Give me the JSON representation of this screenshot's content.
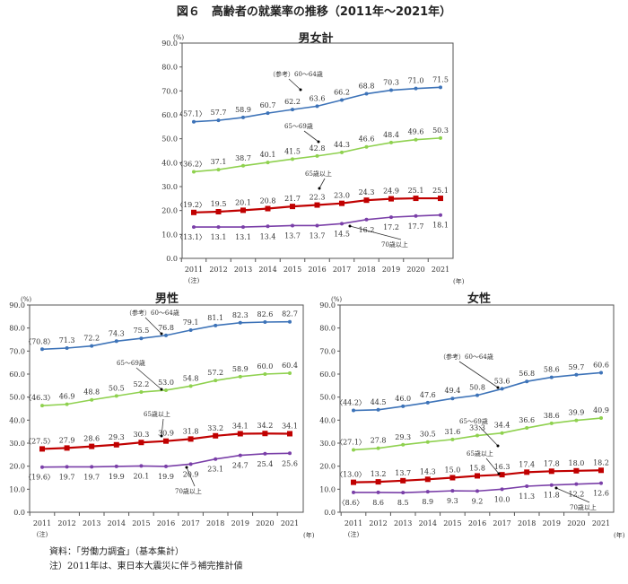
{
  "title": "図６　高齢者の就業率の推移（2011年～2021年）",
  "notes": [
    "資料：「労働力調査」（基本集計）",
    "注）2011年は、東日本大震災に伴う補完推計値"
  ],
  "colors": {
    "s6064": "#3d73b8",
    "s6569": "#8fd14f",
    "s65p": "#c00000",
    "s70p": "#7a3fa8"
  },
  "chart_data": [
    {
      "type": "line",
      "title": "男女計",
      "categories": [
        "2011",
        "2012",
        "2013",
        "2014",
        "2015",
        "2016",
        "2017",
        "2018",
        "2019",
        "2020",
        "2021"
      ],
      "x_note": "(注)",
      "x_unit": "(年)",
      "y_unit": "(%)",
      "ylim": [
        0,
        90
      ],
      "yticks": [
        "0.0",
        "10.0",
        "20.0",
        "30.0",
        "40.0",
        "50.0",
        "60.0",
        "70.0",
        "80.0",
        "90.0"
      ],
      "series": [
        {
          "name": "（参考）60～64歳",
          "values": [
            57.1,
            57.7,
            58.9,
            60.7,
            62.2,
            63.6,
            66.2,
            68.8,
            70.3,
            71.0,
            71.5
          ]
        },
        {
          "name": "65～69歳",
          "values": [
            36.2,
            37.1,
            38.7,
            40.1,
            41.5,
            42.8,
            44.3,
            46.6,
            48.4,
            49.6,
            50.3
          ]
        },
        {
          "name": "65歳以上",
          "values": [
            19.2,
            19.5,
            20.1,
            20.8,
            21.7,
            22.3,
            23.0,
            24.3,
            24.9,
            25.1,
            25.1
          ]
        },
        {
          "name": "70歳以上",
          "values": [
            13.1,
            13.1,
            13.1,
            13.4,
            13.7,
            13.7,
            14.5,
            16.2,
            17.2,
            17.7,
            18.1
          ]
        }
      ]
    },
    {
      "type": "line",
      "title": "男性",
      "categories": [
        "2011",
        "2012",
        "2013",
        "2014",
        "2015",
        "2016",
        "2017",
        "2018",
        "2019",
        "2020",
        "2021"
      ],
      "x_note": "(注)",
      "x_unit": "(年)",
      "y_unit": "(%)",
      "ylim": [
        0,
        90
      ],
      "yticks": [
        "0.0",
        "10.0",
        "20.0",
        "30.0",
        "40.0",
        "50.0",
        "60.0",
        "70.0",
        "80.0",
        "90.0"
      ],
      "series": [
        {
          "name": "（参考）60～64歳",
          "values": [
            70.8,
            71.3,
            72.2,
            74.3,
            75.5,
            76.8,
            79.1,
            81.1,
            82.3,
            82.6,
            82.7
          ]
        },
        {
          "name": "65～69歳",
          "values": [
            46.3,
            46.9,
            48.8,
            50.5,
            52.2,
            53.0,
            54.8,
            57.2,
            58.9,
            60.0,
            60.4
          ]
        },
        {
          "name": "65歳以上",
          "values": [
            27.5,
            27.9,
            28.6,
            29.3,
            30.3,
            30.9,
            31.8,
            33.2,
            34.1,
            34.2,
            34.1
          ]
        },
        {
          "name": "70歳以上",
          "values": [
            19.6,
            19.7,
            19.7,
            19.9,
            20.1,
            19.9,
            20.9,
            23.1,
            24.7,
            25.4,
            25.6
          ]
        }
      ]
    },
    {
      "type": "line",
      "title": "女性",
      "categories": [
        "2011",
        "2012",
        "2013",
        "2014",
        "2015",
        "2016",
        "2017",
        "2018",
        "2019",
        "2020",
        "2021"
      ],
      "x_note": "(注)",
      "x_unit": "(年)",
      "y_unit": "(%)",
      "ylim": [
        0,
        90
      ],
      "yticks": [
        "0.0",
        "10.0",
        "20.0",
        "30.0",
        "40.0",
        "50.0",
        "60.0",
        "70.0",
        "80.0",
        "90.0"
      ],
      "series": [
        {
          "name": "（参考）60～64歳",
          "values": [
            44.2,
            44.5,
            46.0,
            47.6,
            49.4,
            50.8,
            53.6,
            56.8,
            58.6,
            59.7,
            60.6
          ]
        },
        {
          "name": "65～69歳",
          "values": [
            27.1,
            27.8,
            29.3,
            30.5,
            31.6,
            33.3,
            34.4,
            36.6,
            38.6,
            39.9,
            40.9
          ]
        },
        {
          "name": "65歳以上",
          "values": [
            13.0,
            13.2,
            13.7,
            14.3,
            15.0,
            15.8,
            16.3,
            17.4,
            17.8,
            18.0,
            18.2
          ]
        },
        {
          "name": "70歳以上",
          "values": [
            8.6,
            8.6,
            8.5,
            8.9,
            9.3,
            9.2,
            10.0,
            11.3,
            11.8,
            12.2,
            12.6
          ]
        }
      ]
    }
  ]
}
